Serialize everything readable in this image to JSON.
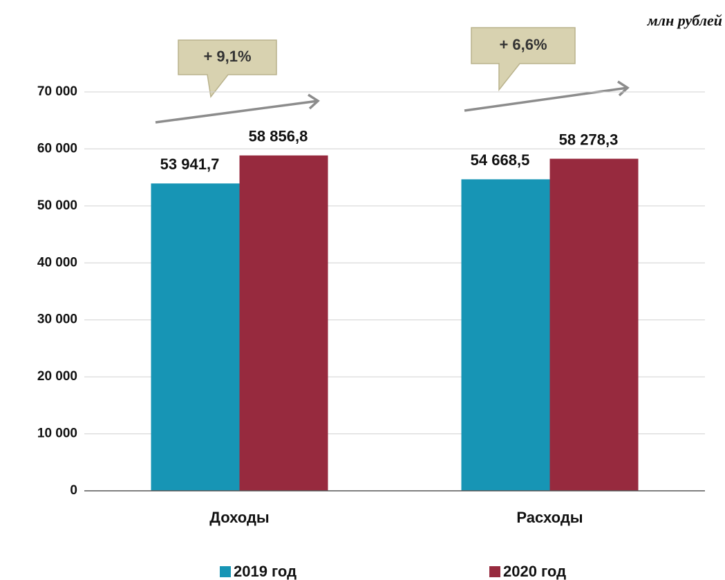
{
  "chart_data": {
    "type": "bar",
    "unit_label": "млн рублей",
    "categories": [
      "Доходы",
      "Расходы"
    ],
    "series": [
      {
        "name": "2019 год",
        "color": "#1795b5",
        "values": [
          53941.7,
          54668.5
        ],
        "value_labels": [
          "53 941,7",
          "54 668,5"
        ]
      },
      {
        "name": "2020 год",
        "color": "#972a3e",
        "values": [
          58856.8,
          58278.3
        ],
        "value_labels": [
          "58 856,8",
          "58 278,3"
        ]
      }
    ],
    "annotations": [
      "+ 9,1%",
      "+ 6,6%"
    ],
    "ylim": [
      0,
      70000
    ],
    "yticks": [
      0,
      {
        "value": 10000,
        "label": "10 000"
      },
      {
        "value": 20000,
        "label": "20 000"
      },
      {
        "value": 30000,
        "label": "30 000"
      },
      {
        "value": 40000,
        "label": "40 000"
      },
      {
        "value": 50000,
        "label": "50 000"
      },
      {
        "value": 60000,
        "label": "60 000"
      },
      {
        "value": 70000,
        "label": "70 000"
      }
    ],
    "grid": true
  }
}
